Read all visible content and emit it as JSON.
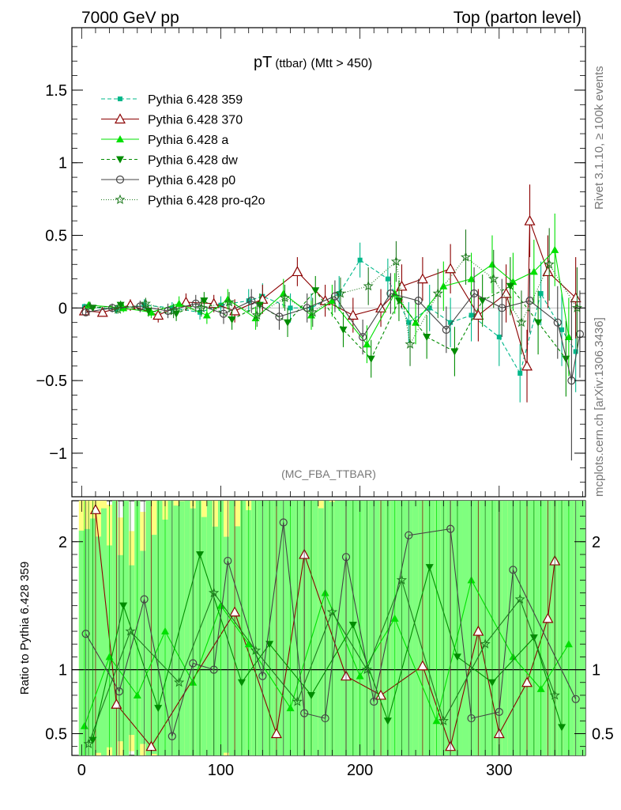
{
  "header": {
    "left": "7000 GeV pp",
    "right": "Top (parton level)"
  },
  "side_text": {
    "rivet": "Rivet 3.1.10, ≥ 100k events",
    "mcplots": "mcplots.cern.ch [arXiv:1306.3436]"
  },
  "colors": {
    "p359": "#00b88a",
    "p370": "#8b0000",
    "pa": "#00e000",
    "pdw": "#008c00",
    "pp0": "#444444",
    "pq2o": "#1e7a1e",
    "band_yellow": "#ffff80",
    "band_green": "#7fff7f"
  },
  "chart_data": [
    {
      "type": "scatter",
      "title": "pT",
      "title_sub": "(ttbar)",
      "title_cut": "(Mtt > 450)",
      "watermark": "(MC_FBA_TTBAR)",
      "xlim": [
        -7,
        362
      ],
      "ylim": [
        -1.3,
        1.93
      ],
      "yticks": [
        -1,
        -0.5,
        0,
        0.5,
        1,
        1.5
      ],
      "ytick_labels": [
        "−1",
        "−0.5",
        "0",
        "0.5",
        "1",
        "1.5"
      ],
      "legend_position": "top-left",
      "series": [
        {
          "name": "Pythia 6.428 359",
          "key": "p359",
          "marker": "square",
          "dash": "5,3",
          "x": [
            2,
            25,
            45,
            65,
            85,
            100,
            120,
            130,
            150,
            165,
            185,
            200,
            220,
            235,
            250,
            265,
            280,
            300,
            315,
            330,
            345,
            355
          ],
          "values": [
            0.01,
            -0.01,
            0.02,
            0.0,
            -0.03,
            0.02,
            0.05,
            0.08,
            0.0,
            0.0,
            0.1,
            0.33,
            0.2,
            -0.1,
            0.0,
            -0.1,
            -0.05,
            -0.2,
            -0.45,
            0.1,
            -0.15,
            -0.3
          ],
          "err": [
            0.02,
            0.03,
            0.04,
            0.04,
            0.05,
            0.06,
            0.08,
            0.09,
            0.1,
            0.1,
            0.12,
            0.12,
            0.14,
            0.14,
            0.16,
            0.17,
            0.18,
            0.2,
            0.2,
            0.22,
            0.25,
            0.28
          ]
        },
        {
          "name": "Pythia 6.428 370",
          "key": "p370",
          "marker": "triangle-open",
          "dash": "",
          "x": [
            2,
            15,
            35,
            55,
            75,
            95,
            110,
            130,
            155,
            175,
            195,
            215,
            230,
            245,
            265,
            285,
            305,
            320,
            322,
            335,
            355
          ],
          "values": [
            -0.02,
            -0.03,
            0.02,
            -0.05,
            0.04,
            0.03,
            -0.02,
            0.06,
            0.25,
            0.05,
            -0.05,
            0.0,
            0.15,
            0.2,
            0.27,
            -0.05,
            0.1,
            -0.4,
            0.6,
            0.25,
            0.07
          ],
          "err": [
            0.02,
            0.03,
            0.04,
            0.05,
            0.06,
            0.06,
            0.08,
            0.1,
            0.1,
            0.11,
            0.12,
            0.13,
            0.15,
            0.15,
            0.17,
            0.18,
            0.2,
            0.25,
            0.25,
            0.25,
            0.28
          ]
        },
        {
          "name": "Pythia 6.428 a",
          "key": "pa",
          "marker": "triangle",
          "dash": "",
          "x": [
            5,
            30,
            50,
            70,
            90,
            105,
            125,
            145,
            165,
            180,
            205,
            225,
            240,
            260,
            280,
            295,
            310,
            325,
            340,
            350
          ],
          "values": [
            0.02,
            0.0,
            -0.03,
            0.03,
            -0.05,
            0.06,
            -0.07,
            0.1,
            -0.05,
            0.05,
            -0.25,
            0.1,
            -0.1,
            0.15,
            0.2,
            0.3,
            0.18,
            0.25,
            0.4,
            -0.2
          ],
          "err": [
            0.02,
            0.03,
            0.04,
            0.05,
            0.06,
            0.07,
            0.08,
            0.1,
            0.1,
            0.11,
            0.13,
            0.14,
            0.15,
            0.17,
            0.18,
            0.2,
            0.2,
            0.22,
            0.25,
            0.27
          ]
        },
        {
          "name": "Pythia 6.428 dw",
          "key": "pdw",
          "marker": "triangle-down",
          "dash": "4,3",
          "x": [
            8,
            28,
            48,
            68,
            88,
            108,
            128,
            148,
            168,
            188,
            208,
            228,
            248,
            268,
            288,
            308,
            328,
            348
          ],
          "values": [
            0.0,
            0.02,
            -0.02,
            -0.04,
            0.05,
            -0.08,
            0.02,
            -0.1,
            0.12,
            -0.15,
            -0.35,
            0.05,
            -0.2,
            -0.3,
            0.05,
            0.15,
            -0.1,
            -0.35
          ],
          "err": [
            0.02,
            0.03,
            0.04,
            0.05,
            0.06,
            0.07,
            0.08,
            0.1,
            0.1,
            0.12,
            0.13,
            0.14,
            0.15,
            0.17,
            0.18,
            0.2,
            0.22,
            0.26
          ]
        },
        {
          "name": "Pythia 6.428 p0",
          "key": "pp0",
          "marker": "circle-open",
          "dash": "",
          "x": [
            3,
            22,
            42,
            62,
            82,
            102,
            122,
            142,
            162,
            182,
            202,
            222,
            242,
            262,
            282,
            302,
            322,
            342,
            352,
            358
          ],
          "values": [
            -0.03,
            0.0,
            0.01,
            -0.02,
            0.03,
            -0.04,
            0.05,
            -0.06,
            0.0,
            0.08,
            -0.2,
            0.1,
            0.05,
            -0.15,
            0.1,
            0.0,
            0.05,
            -0.1,
            -0.5,
            -0.18
          ],
          "err": [
            0.02,
            0.03,
            0.04,
            0.05,
            0.06,
            0.07,
            0.08,
            0.09,
            0.1,
            0.11,
            0.12,
            0.14,
            0.15,
            0.16,
            0.18,
            0.2,
            0.22,
            0.25,
            0.55,
            0.3
          ]
        },
        {
          "name": "Pythia 6.428 pro-q2o",
          "key": "pq2o",
          "marker": "star",
          "dash": "1,2",
          "x": [
            6,
            26,
            46,
            66,
            86,
            106,
            126,
            146,
            166,
            186,
            206,
            226,
            236,
            256,
            276,
            296,
            316,
            336,
            356
          ],
          "values": [
            0.01,
            -0.01,
            0.03,
            -0.02,
            0.0,
            0.04,
            -0.05,
            0.07,
            -0.03,
            0.1,
            0.15,
            0.32,
            -0.25,
            0.1,
            0.35,
            0.2,
            -0.1,
            0.3,
            0.0
          ],
          "err": [
            0.02,
            0.03,
            0.04,
            0.05,
            0.06,
            0.07,
            0.08,
            0.09,
            0.1,
            0.11,
            0.13,
            0.14,
            0.15,
            0.17,
            0.19,
            0.2,
            0.22,
            0.25,
            0.28
          ]
        }
      ]
    },
    {
      "type": "scatter",
      "ylabel": "Ratio to Pythia 6.428 359",
      "xlim": [
        -7,
        362
      ],
      "ylim": [
        0.33,
        2.32
      ],
      "xticks": [
        0,
        100,
        200,
        300
      ],
      "xtick_labels": [
        "0",
        "100",
        "200",
        "300"
      ],
      "yticks": [
        0.5,
        1,
        2
      ],
      "ytick_labels": [
        "0.5",
        "1",
        "2"
      ],
      "reference_line": 1,
      "series": [
        {
          "name": "Pythia 6.428 370",
          "key": "p370",
          "marker": "triangle-open",
          "x": [
            10,
            25,
            50,
            110,
            140,
            160,
            190,
            215,
            245,
            265,
            285,
            300,
            320,
            335,
            340
          ],
          "values": [
            2.25,
            0.73,
            0.4,
            1.45,
            0.5,
            1.9,
            0.95,
            0.8,
            1.03,
            0.4,
            1.3,
            0.5,
            0.9,
            1.4,
            1.85
          ]
        },
        {
          "name": "Pythia 6.428 a",
          "key": "pa",
          "marker": "triangle",
          "x": [
            2,
            20,
            40,
            60,
            80,
            100,
            120,
            150,
            175,
            200,
            225,
            255,
            280,
            310,
            330,
            350
          ],
          "values": [
            0.56,
            1.1,
            0.8,
            1.3,
            0.9,
            1.5,
            1.2,
            0.7,
            1.6,
            0.95,
            1.4,
            0.6,
            1.7,
            1.1,
            0.85,
            1.2
          ]
        },
        {
          "name": "Pythia 6.428 dw",
          "key": "pdw",
          "marker": "triangle-down",
          "x": [
            8,
            30,
            55,
            85,
            115,
            135,
            165,
            195,
            220,
            250,
            270,
            295,
            325,
            345
          ],
          "values": [
            0.45,
            1.5,
            0.7,
            1.9,
            0.9,
            1.2,
            0.8,
            1.35,
            0.6,
            1.8,
            1.1,
            0.9,
            1.25,
            0.55
          ]
        },
        {
          "name": "Pythia 6.428 p0",
          "key": "pp0",
          "marker": "circle-open",
          "x": [
            3,
            27,
            45,
            65,
            80,
            95,
            105,
            130,
            145,
            160,
            175,
            190,
            210,
            235,
            265,
            280,
            300,
            310,
            355
          ],
          "values": [
            1.28,
            0.83,
            1.55,
            0.48,
            1.05,
            1.0,
            1.85,
            0.95,
            2.15,
            0.66,
            0.62,
            1.88,
            0.75,
            2.05,
            2.1,
            0.62,
            0.67,
            1.78,
            0.77
          ]
        },
        {
          "name": "Pythia 6.428 pro-q2o",
          "key": "pq2o",
          "marker": "star",
          "x": [
            5,
            35,
            70,
            95,
            125,
            155,
            180,
            205,
            230,
            260,
            290,
            315,
            340
          ],
          "values": [
            0.42,
            1.3,
            0.9,
            1.6,
            1.15,
            0.75,
            1.45,
            1.0,
            1.7,
            0.6,
            1.2,
            1.55,
            0.8
          ]
        }
      ]
    }
  ]
}
